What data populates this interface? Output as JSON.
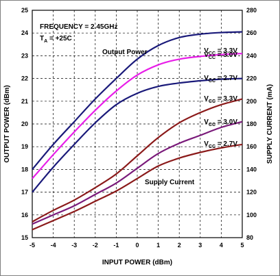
{
  "chart_data": {
    "type": "line",
    "title_lines": [
      "FREQUENCY = 2.45GHz",
      "T_A = +25C"
    ],
    "xlabel": "INPUT POWER (dBm)",
    "ylabel_left": "OUTPUT POWER (dBm)",
    "ylabel_right": "SUPPLY CURRENT (mA)",
    "xlim": [
      -5,
      5
    ],
    "ylim_left": [
      15,
      25
    ],
    "ylim_right": [
      80,
      280
    ],
    "x_ticks": [
      "-5",
      "-4",
      "-3",
      "-2",
      "-1",
      "0",
      "1",
      "2",
      "3",
      "4",
      "5"
    ],
    "y_ticks_left": [
      "15",
      "16",
      "17",
      "18",
      "19",
      "20",
      "21",
      "22",
      "23",
      "24",
      "25"
    ],
    "y_ticks_right": [
      "80",
      "100",
      "120",
      "140",
      "160",
      "180",
      "200",
      "220",
      "240",
      "260",
      "280"
    ],
    "grid": true,
    "annotations": {
      "output_power": "Output Power",
      "supply_current": "Supply Current"
    },
    "series": [
      {
        "name": "VCC = 3.3V",
        "group": "output_power",
        "axis": "left",
        "color": "#1a1a7a",
        "x": [
          -5,
          -4,
          -3,
          -2,
          -1,
          0,
          1,
          2,
          3,
          4,
          5
        ],
        "y": [
          18.0,
          19.1,
          20.1,
          21.1,
          22.0,
          22.85,
          23.45,
          23.8,
          23.95,
          24.02,
          24.05
        ]
      },
      {
        "name": "VCC = 3.0V",
        "group": "output_power",
        "axis": "left",
        "color": "#e81ee8",
        "x": [
          -5,
          -4,
          -3,
          -2,
          -1,
          0,
          1,
          2,
          3,
          4,
          5
        ],
        "y": [
          17.6,
          18.65,
          19.65,
          20.6,
          21.45,
          22.15,
          22.6,
          22.85,
          22.97,
          23.05,
          23.1
        ]
      },
      {
        "name": "VCC = 2.7V",
        "group": "output_power",
        "axis": "left",
        "color": "#1a1a7a",
        "x": [
          -5,
          -4,
          -3,
          -2,
          -1,
          0,
          1,
          2,
          3,
          4,
          5
        ],
        "y": [
          17.0,
          18.1,
          19.1,
          20.05,
          20.85,
          21.35,
          21.65,
          21.8,
          21.9,
          21.97,
          22.0
        ]
      },
      {
        "name": "VCC = 3.3V",
        "group": "supply_current",
        "axis": "right",
        "color": "#8b1a1a",
        "x": [
          -5,
          -4,
          -3,
          -2,
          -1,
          0,
          1,
          2,
          3,
          4,
          5
        ],
        "y": [
          94,
          104,
          113,
          124,
          136,
          152,
          168,
          181,
          190,
          197,
          202
        ]
      },
      {
        "name": "VCC = 3.0V",
        "group": "supply_current",
        "axis": "right",
        "color": "#7a1a7a",
        "x": [
          -5,
          -4,
          -3,
          -2,
          -1,
          0,
          1,
          2,
          3,
          4,
          5
        ],
        "y": [
          92,
          100,
          108,
          118,
          128,
          141,
          154,
          163,
          170,
          177,
          182
        ]
      },
      {
        "name": "VCC = 2.7V",
        "group": "supply_current",
        "axis": "right",
        "color": "#8b1a1a",
        "x": [
          -5,
          -4,
          -3,
          -2,
          -1,
          0,
          1,
          2,
          3,
          4,
          5
        ],
        "y": [
          87,
          95,
          103,
          112,
          121,
          132,
          143,
          150,
          155,
          159,
          162
        ]
      }
    ],
    "vcc_labels": [
      "3.3V",
      "3.0V",
      "2.7V",
      "3.3V",
      "3.0V",
      "2.7V"
    ]
  }
}
